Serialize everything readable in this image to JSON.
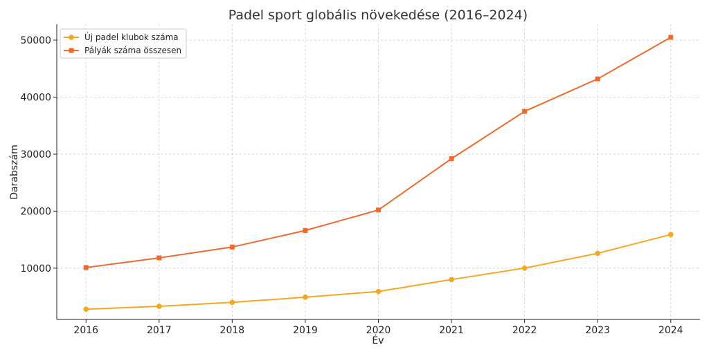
{
  "chart_data": {
    "type": "line",
    "title": "Padel sport globális növekedése (2016–2024)",
    "xlabel": "Év",
    "ylabel": "Darabszám",
    "x": [
      2016,
      2017,
      2018,
      2019,
      2020,
      2021,
      2022,
      2023,
      2024
    ],
    "x_tick_labels": [
      "2016",
      "2017",
      "2018",
      "2019",
      "2020",
      "2021",
      "2022",
      "2023",
      "2024"
    ],
    "y_ticks": [
      10000,
      20000,
      30000,
      40000,
      50000
    ],
    "y_tick_labels": [
      "10000",
      "20000",
      "30000",
      "40000",
      "50000"
    ],
    "xlim": [
      2015.6,
      2024.4
    ],
    "ylim": [
      1000,
      52800
    ],
    "grid": true,
    "legend_position": "top-left",
    "series": [
      {
        "name": "Új padel klubok száma",
        "color": "#f5a623",
        "marker": "circle",
        "values": [
          2800,
          3300,
          4000,
          4900,
          5900,
          8000,
          10000,
          12600,
          15900
        ]
      },
      {
        "name": "Pályák száma összesen",
        "color": "#ee6a2d",
        "marker": "square",
        "values": [
          10100,
          11800,
          13700,
          16600,
          20200,
          29200,
          37500,
          43200,
          50500
        ]
      }
    ]
  }
}
